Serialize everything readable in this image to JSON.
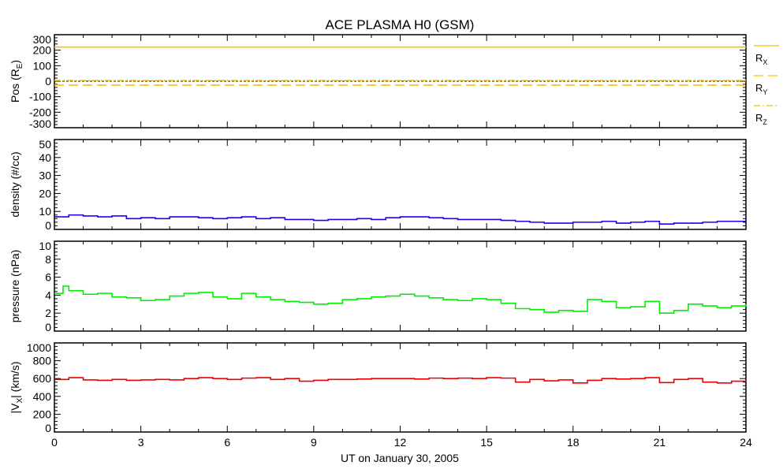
{
  "chart_data": {
    "type": "line",
    "title": "ACE PLASMA H0 (GSM)",
    "xlabel": "UT on January 30, 2005",
    "xlim": [
      0,
      24
    ],
    "xticks": [
      "0",
      "3",
      "6",
      "9",
      "12",
      "15",
      "18",
      "21",
      "24"
    ],
    "panels": [
      {
        "id": "pos",
        "ylabel": "Pos (R",
        "ylabel_sub": "E",
        "ylabel_tail": ")",
        "ylim": [
          -300,
          300
        ],
        "yticks": [
          "300",
          "200",
          "100",
          "0",
          "-100",
          "-200",
          "-300"
        ],
        "yvals": [
          300,
          200,
          100,
          0,
          -100,
          -200,
          -300
        ],
        "zero_line": true,
        "series": [
          {
            "name": "R",
            "sub": "X",
            "color": "#f5c400",
            "dash": "",
            "x": [
              0,
              24
            ],
            "y": [
              220,
              220
            ]
          },
          {
            "name": "R",
            "sub": "Y",
            "color": "#f5c400",
            "dash": "12,6",
            "x": [
              0,
              24
            ],
            "y": [
              -25,
              -25
            ]
          },
          {
            "name": "R",
            "sub": "Z",
            "color": "#f5c400",
            "dash": "8,3,2,3",
            "x": [
              0,
              24
            ],
            "y": [
              5,
              5
            ]
          }
        ]
      },
      {
        "id": "density",
        "ylabel": "density (#/cc)",
        "ylim": [
          0,
          50
        ],
        "yticks": [
          "50",
          "40",
          "30",
          "20",
          "10",
          "0"
        ],
        "yvals": [
          50,
          40,
          30,
          20,
          10,
          0
        ],
        "series": [
          {
            "name": "density",
            "color": "#2200ee",
            "x": [
              0,
              0.5,
              1,
              1.5,
              2,
              2.5,
              3,
              3.5,
              4,
              4.5,
              5,
              5.5,
              6,
              6.5,
              7,
              7.5,
              8,
              8.5,
              9,
              9.5,
              10,
              10.5,
              11,
              11.5,
              12,
              12.5,
              13,
              13.5,
              14,
              14.5,
              15,
              15.5,
              16,
              16.5,
              17,
              17.5,
              18,
              18.5,
              19,
              19.5,
              20,
              20.5,
              21,
              21.5,
              22,
              22.5,
              23,
              23.5,
              24
            ],
            "y": [
              7,
              8,
              7.5,
              7,
              7.5,
              6,
              6.5,
              6,
              7,
              7,
              6.5,
              6,
              6.5,
              7,
              6,
              6.5,
              5.5,
              5.5,
              5,
              5.5,
              5.5,
              6,
              5.5,
              6.5,
              7,
              7,
              6.5,
              6,
              5.5,
              5.5,
              5.5,
              5,
              4.5,
              4,
              3.5,
              3.5,
              4,
              4,
              4.5,
              3.5,
              4,
              4.5,
              3,
              3.5,
              3.5,
              4,
              4.5,
              4.5,
              5
            ]
          }
        ]
      },
      {
        "id": "pressure",
        "ylabel": "pressure (nPa)",
        "ylim": [
          0,
          10
        ],
        "yticks": [
          "10",
          "8",
          "6",
          "4",
          "2",
          "0"
        ],
        "yvals": [
          10,
          8,
          6,
          4,
          2,
          0
        ],
        "series": [
          {
            "name": "pressure",
            "color": "#00ee00",
            "x": [
              0,
              0.3,
              0.5,
              1,
              1.5,
              2,
              2.5,
              3,
              3.5,
              4,
              4.5,
              5,
              5.5,
              6,
              6.5,
              7,
              7.5,
              8,
              8.5,
              9,
              9.5,
              10,
              10.5,
              11,
              11.5,
              12,
              12.5,
              13,
              13.5,
              14,
              14.5,
              15,
              15.5,
              16,
              16.5,
              17,
              17.5,
              18,
              18.5,
              19,
              19.5,
              20,
              20.5,
              21,
              21.5,
              22,
              22.5,
              23,
              23.5,
              24
            ],
            "y": [
              4.2,
              5,
              4.5,
              4.1,
              4.2,
              3.8,
              3.7,
              3.4,
              3.5,
              3.9,
              4.2,
              4.3,
              3.8,
              3.6,
              4.2,
              3.8,
              3.5,
              3.3,
              3.2,
              3,
              3.1,
              3.5,
              3.6,
              3.8,
              3.9,
              4.1,
              3.9,
              3.7,
              3.5,
              3.4,
              3.6,
              3.5,
              3.1,
              2.5,
              2.4,
              2.1,
              2.3,
              2.2,
              3.5,
              3.3,
              2.6,
              2.7,
              3.3,
              2,
              2.3,
              3,
              2.8,
              2.6,
              2.8,
              3
            ]
          }
        ]
      },
      {
        "id": "vx",
        "ylabel": "|V",
        "ylabel_sub": "X",
        "ylabel_tail": "| (km/s)",
        "ylim": [
          0,
          1000
        ],
        "yticks": [
          "1000",
          "800",
          "600",
          "400",
          "200",
          "0"
        ],
        "yvals": [
          1000,
          800,
          600,
          400,
          200,
          0
        ],
        "series": [
          {
            "name": "|Vx|",
            "color": "#ee0000",
            "x": [
              0,
              0.5,
              1,
              1.5,
              2,
              2.5,
              3,
              3.5,
              4,
              4.5,
              5,
              5.5,
              6,
              6.5,
              7,
              7.5,
              8,
              8.5,
              9,
              9.5,
              10,
              10.5,
              11,
              11.5,
              12,
              12.5,
              13,
              13.5,
              14,
              14.5,
              15,
              15.5,
              16,
              16.5,
              17,
              17.5,
              18,
              18.5,
              19,
              19.5,
              20,
              20.5,
              21,
              21.5,
              22,
              22.5,
              23,
              23.5,
              24
            ],
            "y": [
              590,
              610,
              585,
              580,
              590,
              580,
              585,
              590,
              585,
              600,
              610,
              600,
              590,
              605,
              610,
              590,
              600,
              570,
              580,
              590,
              590,
              595,
              600,
              600,
              600,
              595,
              605,
              600,
              605,
              600,
              610,
              605,
              560,
              590,
              575,
              585,
              550,
              580,
              600,
              595,
              600,
              610,
              555,
              590,
              600,
              560,
              550,
              570,
              565
            ]
          }
        ]
      }
    ]
  }
}
